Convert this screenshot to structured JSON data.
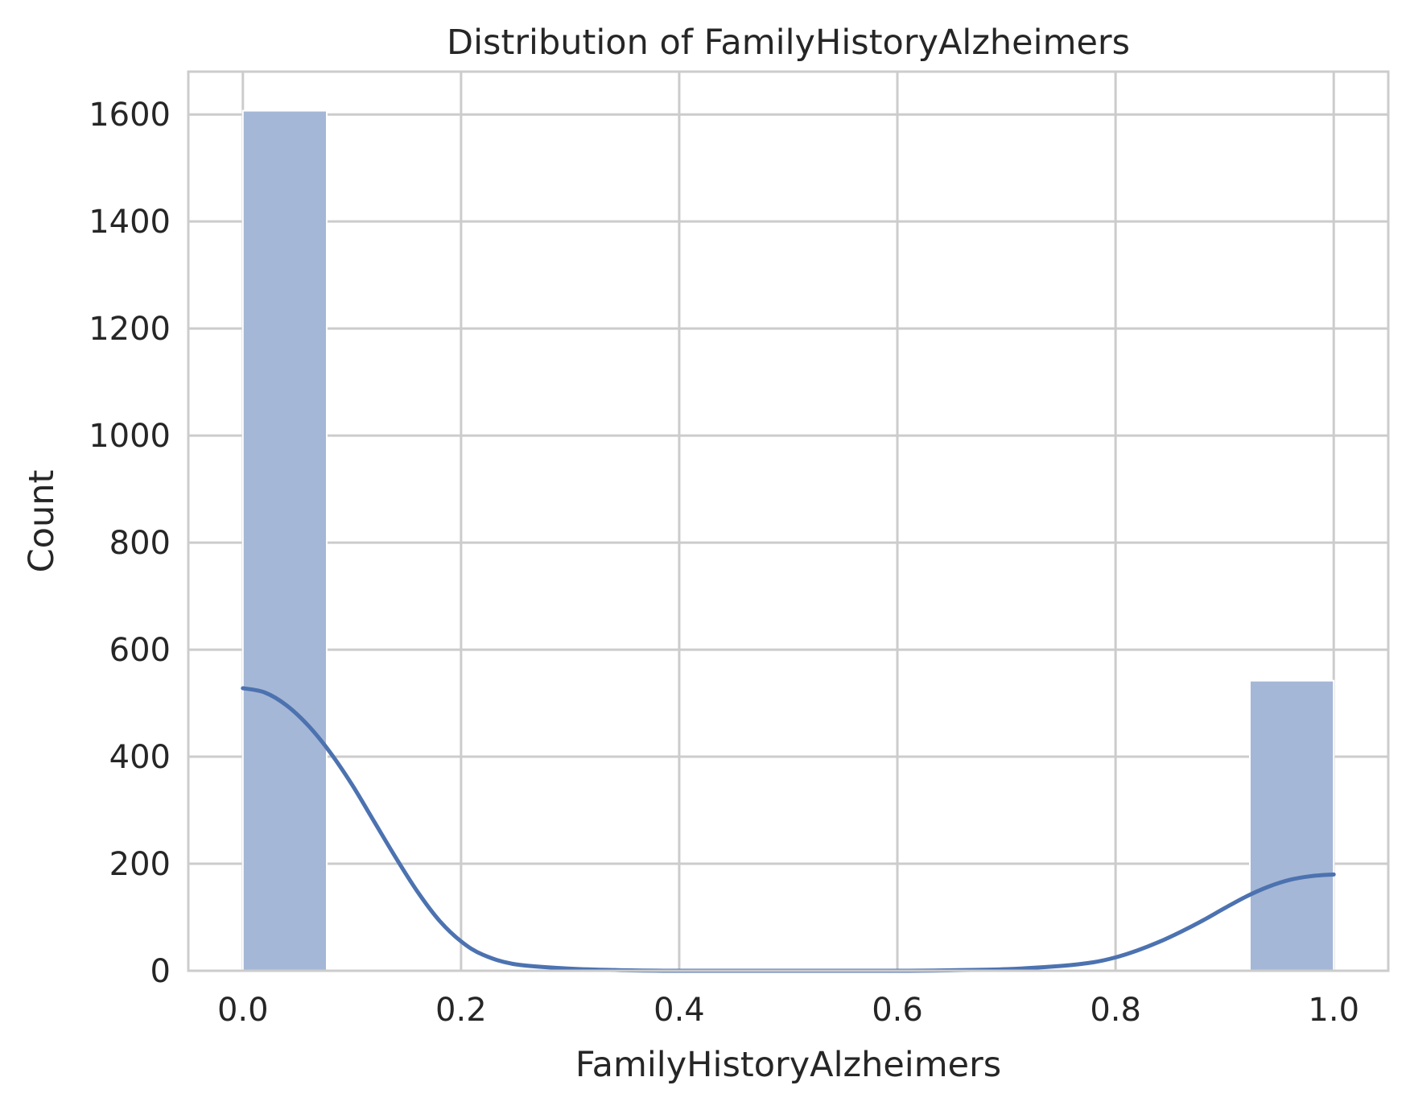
{
  "chart_data": {
    "type": "bar",
    "title": "Distribution of FamilyHistoryAlzheimers",
    "xlabel": "FamilyHistoryAlzheimers",
    "ylabel": "Count",
    "xlim": [
      -0.05,
      1.05
    ],
    "ylim": [
      0,
      1680
    ],
    "x_ticks": [
      "0.0",
      "0.2",
      "0.4",
      "0.6",
      "0.8",
      "1.0"
    ],
    "y_ticks": [
      "0",
      "200",
      "400",
      "600",
      "800",
      "1000",
      "1200",
      "1400",
      "1600"
    ],
    "grid": true,
    "bins": [
      {
        "x0": 0.0,
        "x1": 0.0769,
        "count": 1607
      },
      {
        "x0": 0.9231,
        "x1": 1.0,
        "count": 542
      }
    ],
    "kde": {
      "x": [
        0.0,
        0.02,
        0.04,
        0.06,
        0.08,
        0.1,
        0.12,
        0.14,
        0.16,
        0.18,
        0.2,
        0.22,
        0.25,
        0.3,
        0.35,
        0.4,
        0.5,
        0.6,
        0.65,
        0.7,
        0.75,
        0.78,
        0.8,
        0.82,
        0.84,
        0.86,
        0.88,
        0.9,
        0.92,
        0.94,
        0.96,
        0.98,
        1.0
      ],
      "y": [
        528,
        520,
        496,
        458,
        408,
        348,
        280,
        212,
        148,
        94,
        55,
        30,
        12,
        4,
        1,
        0,
        0,
        0,
        1,
        3,
        9,
        16,
        25,
        38,
        54,
        73,
        94,
        117,
        139,
        157,
        170,
        177,
        180
      ]
    },
    "colors": {
      "bar": "#a5b7d6",
      "kde": "#4c72b0",
      "grid": "#cccccc",
      "spine": "#cccccc",
      "text": "#262626"
    }
  }
}
